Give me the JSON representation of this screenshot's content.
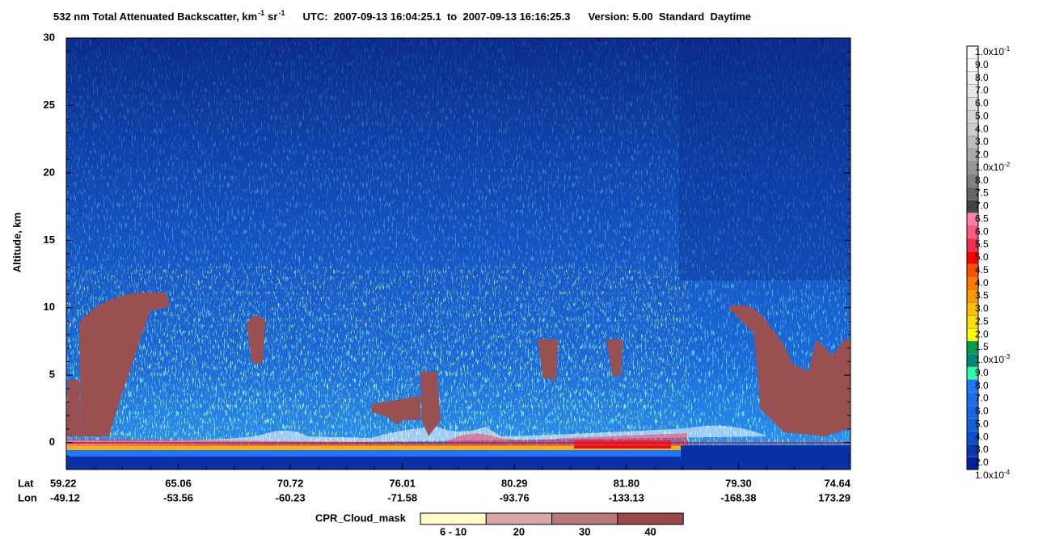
{
  "chart_data": {
    "type": "heatmap",
    "title": [
      "532 nm Total Attenuated Backscatter, km",
      "-1",
      "sr",
      "-1",
      "UTC:  2007-09-13 16:04:25.1  to  2007-09-13 16:16:25.3",
      "Version: 5.00  Standard  Daytime"
    ],
    "y_label": "Altitude, km",
    "ylim": [
      -2,
      30
    ],
    "yticks": [
      0,
      5,
      10,
      15,
      20,
      25,
      30
    ],
    "x_row_labels": [
      "Lat",
      "Lon"
    ],
    "lat": [
      "59.22",
      "65.06",
      "70.72",
      "76.01",
      "80.29",
      "81.80",
      "79.30",
      "74.64"
    ],
    "lon": [
      "-49.12",
      "-53.56",
      "-60.23",
      "-71.58",
      "-93.76",
      "-133.13",
      "-168.38",
      "173.29"
    ],
    "colorbar": {
      "labels": [
        {
          "label": "1.0x10",
          "sup": "-1"
        },
        {
          "label": "9.0"
        },
        {
          "label": "8.0"
        },
        {
          "label": "7.0"
        },
        {
          "label": "6.0"
        },
        {
          "label": "5.0"
        },
        {
          "label": "4.0"
        },
        {
          "label": "3.0"
        },
        {
          "label": "2.0"
        },
        {
          "label": "1.0x10",
          "sup": "-2"
        },
        {
          "label": "8.0"
        },
        {
          "label": "7.5"
        },
        {
          "label": "7.0"
        },
        {
          "label": "6.5"
        },
        {
          "label": "6.0"
        },
        {
          "label": "5.5"
        },
        {
          "label": "5.0"
        },
        {
          "label": "4.5"
        },
        {
          "label": "4.0"
        },
        {
          "label": "3.5"
        },
        {
          "label": "3.0"
        },
        {
          "label": "2.5"
        },
        {
          "label": "2.0"
        },
        {
          "label": "1.5"
        },
        {
          "label": "1.0x10",
          "sup": "-3"
        },
        {
          "label": "9.0"
        },
        {
          "label": "8.0"
        },
        {
          "label": "7.0"
        },
        {
          "label": "6.0"
        },
        {
          "label": "5.0"
        },
        {
          "label": "4.0"
        },
        {
          "label": "3.0"
        },
        {
          "label": "2.0"
        },
        {
          "label": "1.0x10",
          "sup": "-4"
        }
      ],
      "colors": [
        "#ffffff",
        "#f8f8f8",
        "#f0f0f0",
        "#e8e8e8",
        "#e0e0e0",
        "#d6d6d6",
        "#cccccc",
        "#bcbcbc",
        "#aaaaaa",
        "#969696",
        "#808080",
        "#666666",
        "#444444",
        "#ff80a8",
        "#ff5a80",
        "#f03050",
        "#ff0000",
        "#ff5000",
        "#ff7800",
        "#ff9a00",
        "#ffc000",
        "#ffe000",
        "#ffff00",
        "#00a050",
        "#008878",
        "#30ffa8",
        "#1e78ff",
        "#1870f0",
        "#1468e8",
        "#1060e0",
        "#0a50d0",
        "#0838b0",
        "#0020a0"
      ]
    },
    "cpr_legend": {
      "title": "CPR_Cloud_mask",
      "labels": [
        "6 - 10",
        "20",
        "30",
        "40"
      ],
      "colors": [
        "#fffac8",
        "#d8a8a8",
        "#b87878",
        "#9a4848"
      ]
    }
  }
}
